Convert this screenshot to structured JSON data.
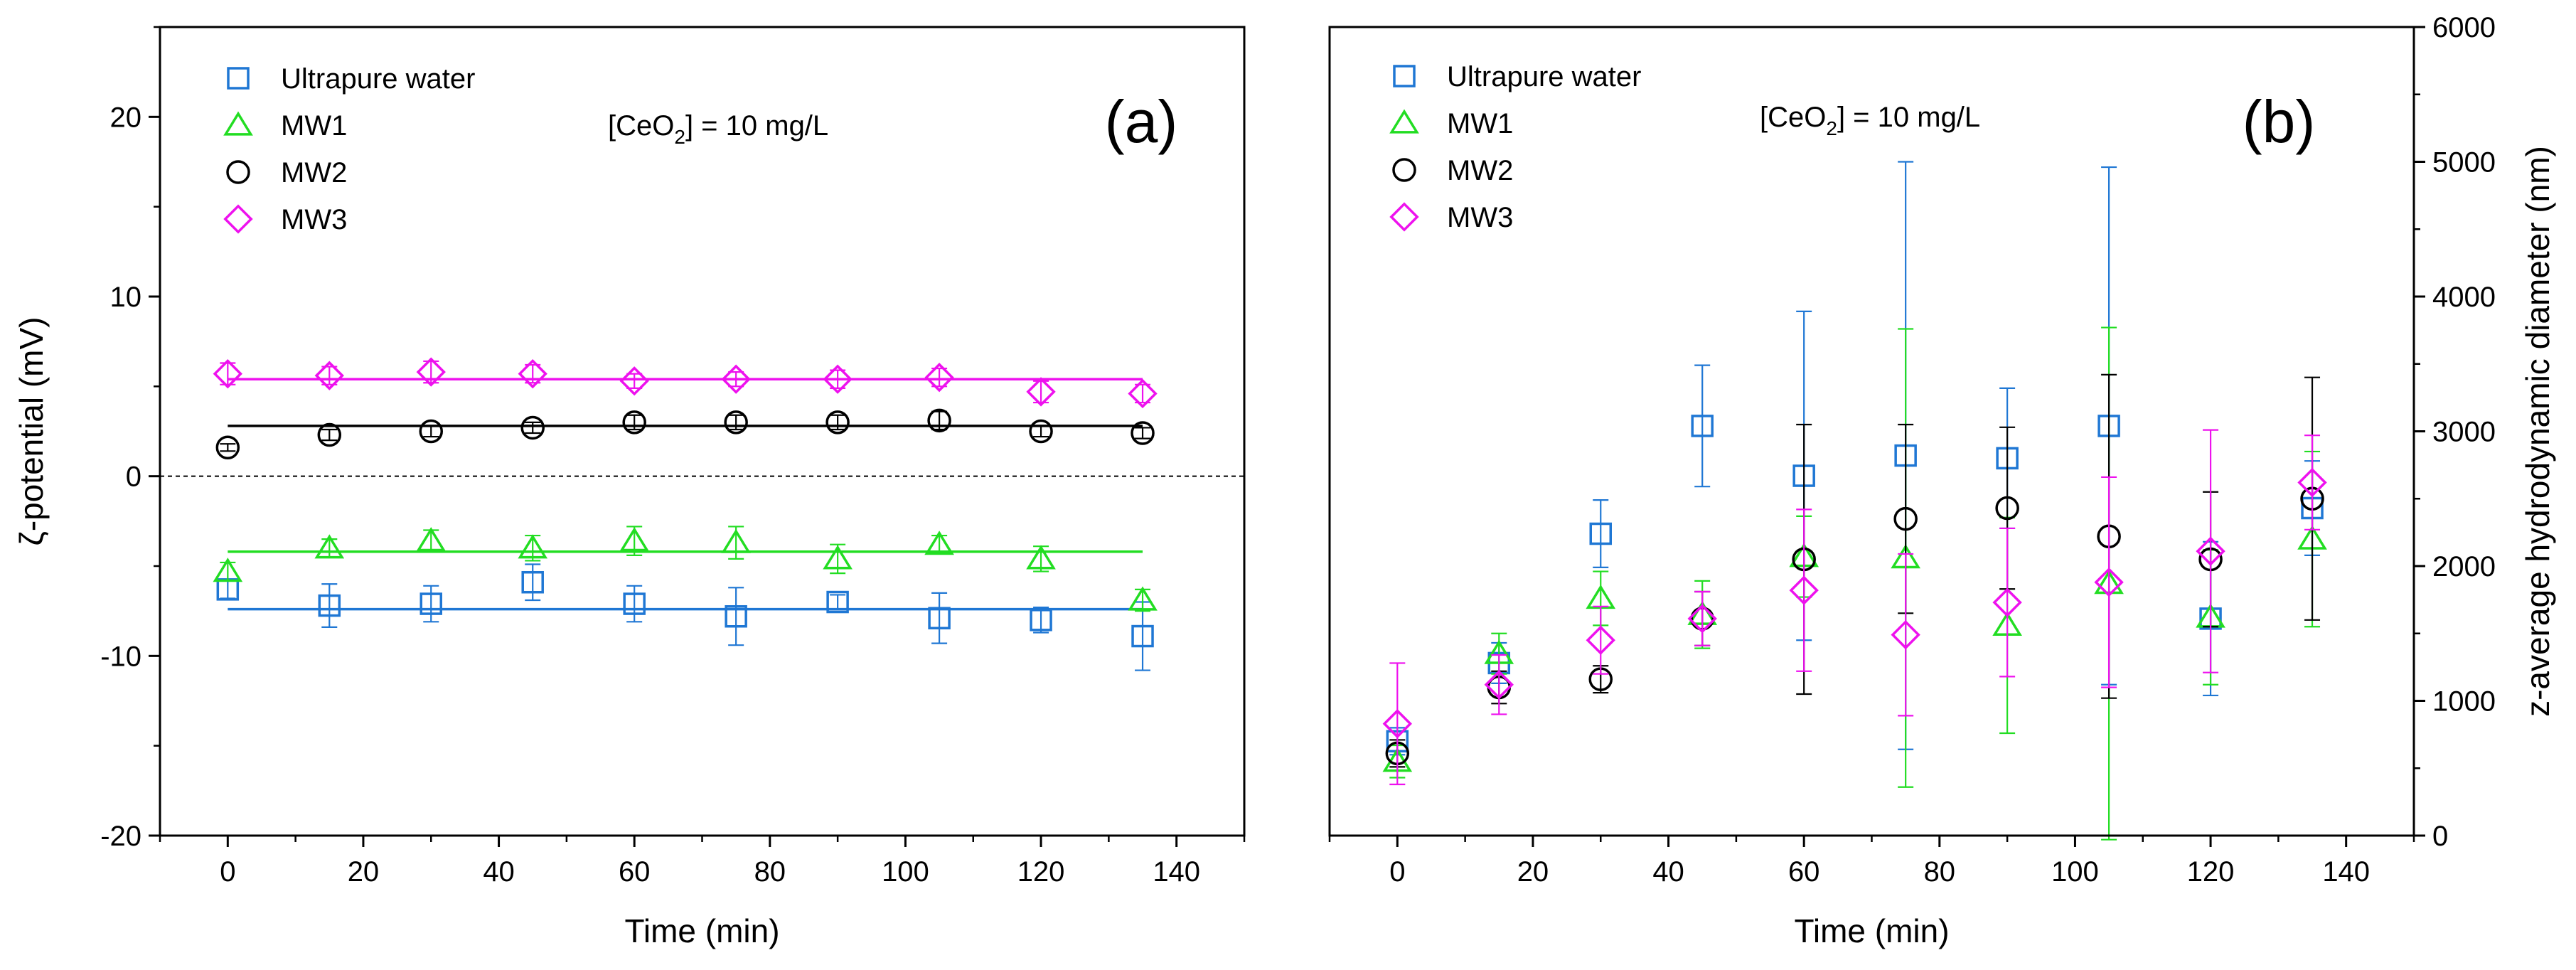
{
  "chart_data": [
    {
      "type": "scatter",
      "panel_label": "(a)",
      "annotation": {
        "prefix": "[CeO",
        "subscript": "2",
        "suffix": "] = 10 mg/L"
      },
      "xlabel": "Time (min)",
      "ylabel": "ζ-potential (mV)",
      "xlim": [
        -10,
        150
      ],
      "ylim": [
        -20,
        25
      ],
      "x_ticks": [
        0,
        20,
        40,
        60,
        80,
        100,
        120,
        140
      ],
      "y_ticks": [
        -20,
        -10,
        0,
        10,
        20
      ],
      "x_tick_labels": [
        "0",
        "20",
        "40",
        "60",
        "80",
        "100",
        "120",
        "140"
      ],
      "y_tick_labels": [
        "-20",
        "-10",
        "0",
        "10",
        "20"
      ],
      "grid": false,
      "legend_position": "top-left",
      "zero_line": "dashed",
      "series": [
        {
          "name": "Ultrapure water",
          "marker": "square",
          "color": "#1f77d4",
          "x": [
            0,
            15,
            30,
            45,
            60,
            75,
            90,
            105,
            120,
            135
          ],
          "y": [
            -6.3,
            -7.2,
            -7.1,
            -5.9,
            -7.1,
            -7.8,
            -7.0,
            -7.9,
            -8.0,
            -8.9
          ],
          "error": [
            0.5,
            1.2,
            1.0,
            1.0,
            1.0,
            1.6,
            0.4,
            1.4,
            0.7,
            1.9
          ],
          "trend": [
            -7.4,
            -7.4
          ]
        },
        {
          "name": "MW1",
          "marker": "triangle",
          "color": "#22dd22",
          "x": [
            0,
            15,
            30,
            45,
            60,
            75,
            90,
            105,
            120,
            135
          ],
          "y": [
            -5.3,
            -4.0,
            -3.6,
            -4.0,
            -3.6,
            -3.7,
            -4.6,
            -3.8,
            -4.6,
            -6.9
          ],
          "error": [
            0.5,
            0.5,
            0.6,
            0.7,
            0.8,
            0.9,
            0.8,
            0.5,
            0.7,
            0.6
          ],
          "trend": [
            -4.2,
            -4.2
          ]
        },
        {
          "name": "MW2",
          "marker": "circle",
          "color": "#000000",
          "x": [
            0,
            15,
            30,
            45,
            60,
            75,
            90,
            105,
            120,
            135
          ],
          "y": [
            1.6,
            2.3,
            2.5,
            2.7,
            3.0,
            3.0,
            3.0,
            3.1,
            2.5,
            2.4
          ],
          "error": [
            0.2,
            0.3,
            0.3,
            0.3,
            0.4,
            0.4,
            0.4,
            0.5,
            0.3,
            0.3
          ],
          "trend": [
            2.8,
            2.8
          ]
        },
        {
          "name": "MW3",
          "marker": "diamond",
          "color": "#ee11ee",
          "x": [
            0,
            15,
            30,
            45,
            60,
            75,
            90,
            105,
            120,
            135
          ],
          "y": [
            5.7,
            5.6,
            5.8,
            5.7,
            5.3,
            5.4,
            5.4,
            5.5,
            4.7,
            4.6
          ],
          "error": [
            0.6,
            0.5,
            0.6,
            0.5,
            0.4,
            0.4,
            0.5,
            0.5,
            0.6,
            0.5
          ],
          "trend": [
            5.4,
            5.4
          ]
        }
      ]
    },
    {
      "type": "scatter",
      "panel_label": "(b)",
      "annotation": {
        "prefix": "[CeO",
        "subscript": "2",
        "suffix": "] = 10 mg/L"
      },
      "xlabel": "Time (min)",
      "ylabel": "z-average hydrodynamic diameter (nm)",
      "xlim": [
        -10,
        150
      ],
      "ylim": [
        0,
        6000
      ],
      "x_ticks": [
        0,
        20,
        40,
        60,
        80,
        100,
        120,
        140
      ],
      "y_ticks": [
        0,
        1000,
        2000,
        3000,
        4000,
        5000,
        6000
      ],
      "x_tick_labels": [
        "0",
        "20",
        "40",
        "60",
        "80",
        "100",
        "120",
        "140"
      ],
      "y_tick_labels": [
        "0",
        "1000",
        "2000",
        "3000",
        "4000",
        "5000",
        "6000"
      ],
      "y_axis_side": "right",
      "grid": false,
      "legend_position": "top-left",
      "series": [
        {
          "name": "Ultrapure water",
          "marker": "square",
          "color": "#1f77d4",
          "x": [
            0,
            15,
            30,
            45,
            60,
            75,
            90,
            105,
            120,
            135
          ],
          "y": [
            700,
            1280,
            2240,
            3040,
            2670,
            2820,
            2800,
            3040,
            1610,
            2430
          ],
          "error": [
            100,
            150,
            250,
            450,
            1220,
            2180,
            520,
            1920,
            570,
            350
          ]
        },
        {
          "name": "MW1",
          "marker": "triangle",
          "color": "#22dd22",
          "x": [
            0,
            15,
            30,
            45,
            60,
            75,
            90,
            105,
            120,
            135
          ],
          "y": [
            550,
            1350,
            1760,
            1640,
            2070,
            2060,
            1560,
            1870,
            1620,
            2200
          ],
          "error": [
            120,
            150,
            200,
            250,
            300,
            1700,
            800,
            1900,
            500,
            650
          ]
        },
        {
          "name": "MW2",
          "marker": "circle",
          "color": "#000000",
          "x": [
            0,
            15,
            30,
            45,
            60,
            75,
            90,
            105,
            120,
            135
          ],
          "y": [
            610,
            1100,
            1160,
            1610,
            2050,
            2350,
            2430,
            2220,
            2050,
            2500
          ],
          "error": [
            100,
            120,
            100,
            200,
            1000,
            700,
            600,
            1200,
            500,
            900
          ]
        },
        {
          "name": "MW3",
          "marker": "diamond",
          "color": "#ee11ee",
          "x": [
            0,
            15,
            30,
            45,
            60,
            75,
            90,
            105,
            120,
            135
          ],
          "y": [
            830,
            1120,
            1450,
            1610,
            1820,
            1490,
            1730,
            1880,
            2110,
            2620
          ],
          "error": [
            450,
            220,
            250,
            200,
            600,
            600,
            550,
            780,
            900,
            350
          ]
        }
      ]
    }
  ]
}
